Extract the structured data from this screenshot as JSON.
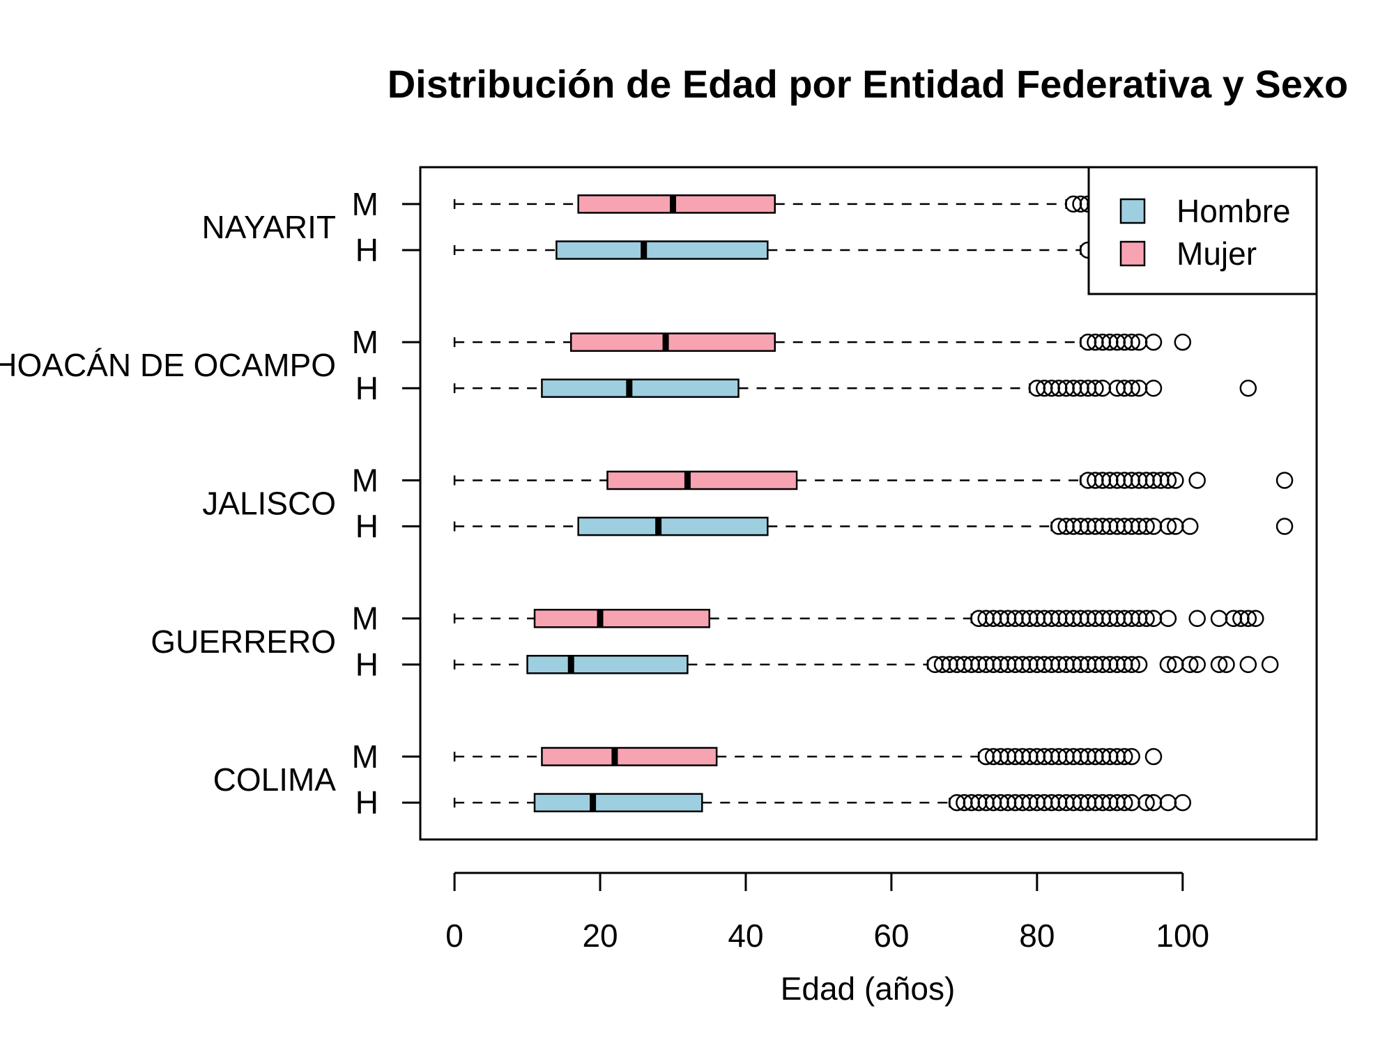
{
  "chart_data": {
    "type": "boxplot",
    "orientation": "horizontal",
    "title": "Distribución de Edad por Entidad Federativa y Sexo",
    "xlabel": "Edad (años)",
    "ylabel": "",
    "xlim": [
      -4.7,
      118.4
    ],
    "xticks": [
      0,
      20,
      40,
      60,
      80,
      100
    ],
    "grid": false,
    "legend": {
      "placement": "top-right",
      "entries": [
        {
          "name": "Hombre",
          "color": "#9ecfe0"
        },
        {
          "name": "Mujer",
          "color": "#f7a3b2"
        }
      ]
    },
    "colors": {
      "Hombre": "#9ecfe0",
      "Mujer": "#f7a3b2",
      "outline": "#000000"
    },
    "sex_labels": {
      "Hombre": "H",
      "Mujer": "M"
    },
    "groups": [
      {
        "name": "COLIMA",
        "boxes": [
          {
            "sex": "Hombre",
            "label": "H",
            "min": 0,
            "q1": 11,
            "median": 19,
            "q3": 34,
            "max": 68,
            "outliers": [
              69,
              70,
              71,
              72,
              73,
              74,
              75,
              76,
              77,
              78,
              79,
              80,
              81,
              82,
              83,
              84,
              85,
              86,
              87,
              88,
              89,
              90,
              91,
              92,
              93,
              95,
              96,
              98,
              100
            ]
          },
          {
            "sex": "Mujer",
            "label": "M",
            "min": 0,
            "q1": 12,
            "median": 22,
            "q3": 36,
            "max": 72,
            "outliers": [
              73,
              74,
              75,
              76,
              77,
              78,
              79,
              80,
              81,
              82,
              83,
              84,
              85,
              86,
              87,
              88,
              89,
              90,
              91,
              92,
              93,
              96
            ]
          }
        ]
      },
      {
        "name": "GUERRERO",
        "boxes": [
          {
            "sex": "Hombre",
            "label": "H",
            "min": 0,
            "q1": 10,
            "median": 16,
            "q3": 32,
            "max": 65,
            "outliers": [
              66,
              67,
              68,
              69,
              70,
              71,
              72,
              73,
              74,
              75,
              76,
              77,
              78,
              79,
              80,
              81,
              82,
              83,
              84,
              85,
              86,
              87,
              88,
              89,
              90,
              91,
              92,
              93,
              94,
              98,
              99,
              101,
              102,
              105,
              106,
              109,
              112
            ]
          },
          {
            "sex": "Mujer",
            "label": "M",
            "min": 0,
            "q1": 11,
            "median": 20,
            "q3": 35,
            "max": 71,
            "outliers": [
              72,
              73,
              74,
              75,
              76,
              77,
              78,
              79,
              80,
              81,
              82,
              83,
              84,
              85,
              86,
              87,
              88,
              89,
              90,
              91,
              92,
              93,
              94,
              95,
              96,
              98,
              102,
              105,
              107,
              108,
              109,
              110
            ]
          }
        ]
      },
      {
        "name": "JALISCO",
        "boxes": [
          {
            "sex": "Hombre",
            "label": "H",
            "min": 0,
            "q1": 17,
            "median": 28,
            "q3": 43,
            "max": 82,
            "outliers": [
              83,
              84,
              85,
              86,
              87,
              88,
              89,
              90,
              91,
              92,
              93,
              94,
              95,
              96,
              98,
              99,
              101,
              114
            ]
          },
          {
            "sex": "Mujer",
            "label": "M",
            "min": 0,
            "q1": 21,
            "median": 32,
            "q3": 47,
            "max": 86,
            "outliers": [
              87,
              88,
              89,
              90,
              91,
              92,
              93,
              94,
              95,
              96,
              97,
              98,
              99,
              102,
              114
            ]
          }
        ]
      },
      {
        "name": "MICHOACÁN DE OCAMPO",
        "boxes": [
          {
            "sex": "Hombre",
            "label": "H",
            "min": 0,
            "q1": 12,
            "median": 24,
            "q3": 39,
            "max": 79,
            "outliers": [
              80,
              81,
              82,
              83,
              84,
              85,
              86,
              87,
              88,
              89,
              91,
              92,
              93,
              94,
              96,
              109
            ]
          },
          {
            "sex": "Mujer",
            "label": "M",
            "min": 0,
            "q1": 16,
            "median": 29,
            "q3": 44,
            "max": 86,
            "outliers": [
              87,
              88,
              89,
              90,
              91,
              92,
              93,
              94,
              96,
              100
            ]
          }
        ]
      },
      {
        "name": "NAYARIT",
        "boxes": [
          {
            "sex": "Hombre",
            "label": "H",
            "min": 0,
            "q1": 14,
            "median": 26,
            "q3": 43,
            "max": 86,
            "outliers": [
              87
            ]
          },
          {
            "sex": "Mujer",
            "label": "M",
            "min": 0,
            "q1": 17,
            "median": 30,
            "q3": 44,
            "max": 84,
            "outliers": [
              85,
              86,
              87,
              88
            ]
          }
        ]
      }
    ]
  }
}
